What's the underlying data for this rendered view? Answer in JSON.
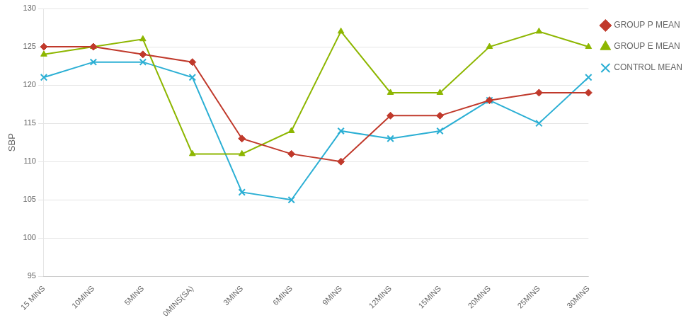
{
  "chart_data": {
    "type": "line",
    "categories": [
      "15 MINS",
      "10MINS",
      "5MINS",
      "0MINS(SA)",
      "3MINS",
      "6MINS",
      "9MINS",
      "12MINS",
      "15MINS",
      "20MINS",
      "25MINS",
      "30MINS"
    ],
    "series": [
      {
        "name": "GROUP P MEAN",
        "color": "#c0392b",
        "marker": "diamond",
        "values": [
          125,
          125,
          124,
          123,
          113,
          111,
          110,
          116,
          116,
          118,
          119,
          119
        ]
      },
      {
        "name": "GROUP E MEAN",
        "color": "#8db600",
        "marker": "triangle",
        "values": [
          124,
          125,
          126,
          111,
          111,
          114,
          127,
          119,
          119,
          125,
          127,
          125
        ]
      },
      {
        "name": "CONTROL MEAN",
        "color": "#2bafd4",
        "marker": "x",
        "values": [
          121,
          123,
          123,
          121,
          106,
          105,
          114,
          113,
          114,
          118,
          115,
          121
        ]
      }
    ],
    "ylabel": "SBP",
    "ylim": [
      95,
      130
    ],
    "yticks": [
      95,
      100,
      105,
      110,
      115,
      120,
      125,
      130
    ],
    "grid": true,
    "legend": "right"
  }
}
